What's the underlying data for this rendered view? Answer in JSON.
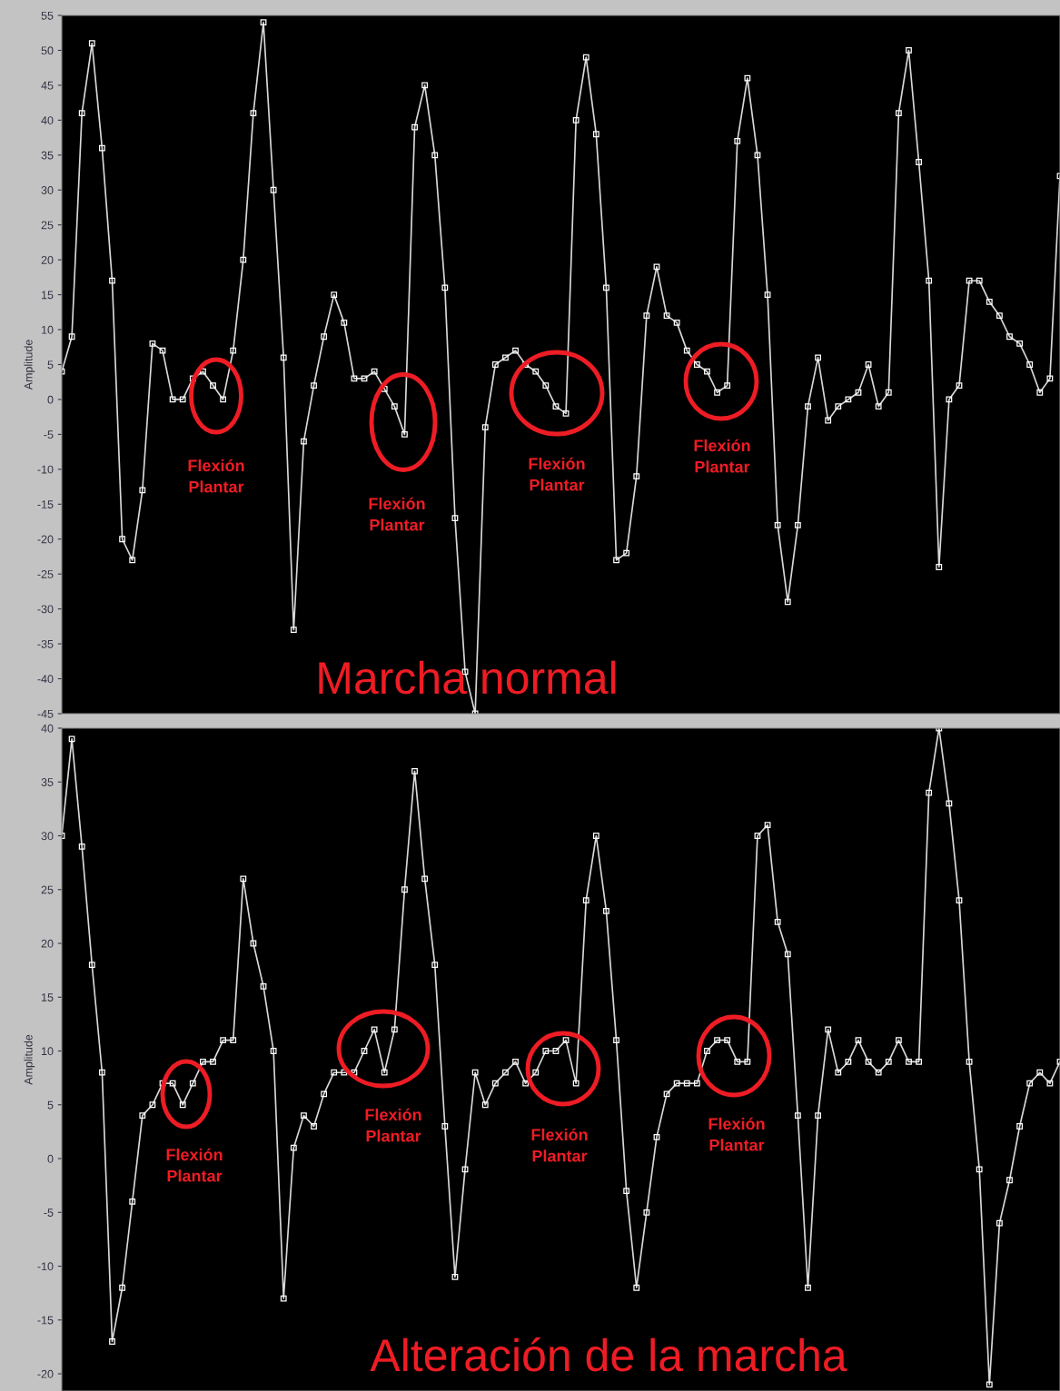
{
  "chart_data": [
    {
      "type": "line",
      "title": "Marcha normal",
      "ylabel": "Amplitude",
      "categories": [
        null,
        null,
        null,
        null,
        null,
        null,
        null,
        null,
        null,
        null,
        null,
        null,
        null,
        null,
        null,
        null,
        null,
        null,
        null,
        null,
        null,
        null,
        null,
        null,
        null,
        null,
        null,
        null,
        null,
        null,
        null,
        null,
        null,
        null,
        null,
        null,
        null,
        null,
        null,
        null,
        null,
        null,
        null,
        null,
        null,
        null,
        null,
        null,
        null,
        null,
        null,
        null,
        null,
        null,
        null,
        null,
        null,
        null,
        null,
        null,
        null,
        null,
        null,
        null,
        null,
        null,
        null,
        null,
        null,
        null,
        null,
        null,
        null,
        null,
        null,
        null,
        null,
        null,
        null,
        null,
        null,
        null,
        null,
        null,
        null,
        null,
        null,
        null,
        null,
        null,
        null,
        null,
        null,
        null,
        null,
        null,
        null,
        null,
        null,
        null
      ],
      "series": [
        {
          "color": "#d8d8d8",
          "values": [
            4,
            9,
            41,
            51,
            36,
            17,
            -20,
            -23,
            -13,
            8,
            7,
            0,
            0,
            3,
            4,
            2,
            0,
            7,
            20,
            41,
            54,
            30,
            6,
            -33,
            -6,
            2,
            9,
            15,
            11,
            3,
            3,
            4,
            1.5,
            -1,
            -5,
            39,
            45,
            35,
            16,
            -17,
            -39,
            -45,
            -4,
            5,
            6,
            7,
            5,
            4,
            2,
            -1,
            -2,
            40,
            49,
            38,
            16,
            -23,
            -22,
            -11,
            12,
            19,
            12,
            11,
            7,
            5,
            4,
            1,
            2,
            37,
            46,
            35,
            15,
            -18,
            -29,
            -18,
            -1,
            6,
            -3,
            -1,
            0,
            1,
            5,
            -1,
            1,
            41,
            50,
            34,
            17,
            -24,
            0,
            2,
            17,
            17,
            14,
            12,
            9,
            8,
            5,
            1,
            3,
            32
          ]
        }
      ],
      "ylim": [
        -45,
        55
      ],
      "yticks": [
        -45,
        -40,
        -35,
        -30,
        -25,
        -20,
        -15,
        -10,
        -5,
        0,
        5,
        10,
        15,
        20,
        25,
        30,
        35,
        40,
        45,
        50,
        55
      ],
      "annotations": [
        "Flexión\nPlantar",
        "Flexión\nPlantar",
        "Flexión\nPlantar",
        "Flexión\nPlantar"
      ],
      "marker": "square",
      "line_style": "solid",
      "grid": false,
      "tick_labels": "y"
    },
    {
      "type": "line",
      "title": "Alteración de la marcha",
      "ylabel": "Amplitude",
      "categories": [
        null,
        null,
        null,
        null,
        null,
        null,
        null,
        null,
        null,
        null,
        null,
        null,
        null,
        null,
        null,
        null,
        null,
        null,
        null,
        null,
        null,
        null,
        null,
        null,
        null,
        null,
        null,
        null,
        null,
        null,
        null,
        null,
        null,
        null,
        null,
        null,
        null,
        null,
        null,
        null,
        null,
        null,
        null,
        null,
        null,
        null,
        null,
        null,
        null,
        null,
        null,
        null,
        null,
        null,
        null,
        null,
        null,
        null,
        null,
        null,
        null,
        null,
        null,
        null,
        null,
        null,
        null,
        null,
        null,
        null,
        null,
        null,
        null,
        null,
        null,
        null,
        null,
        null,
        null,
        null,
        null,
        null,
        null,
        null,
        null,
        null,
        null,
        null,
        null,
        null,
        null,
        null,
        null,
        null,
        null,
        null,
        null,
        null,
        null,
        null
      ],
      "series": [
        {
          "color": "#d8d8d8",
          "values": [
            30,
            39,
            29,
            18,
            8,
            -17,
            -12,
            -4,
            4,
            5,
            7,
            7,
            5,
            7,
            9,
            9,
            11,
            11,
            26,
            20,
            16,
            10,
            -13,
            1,
            4,
            3,
            6,
            8,
            8,
            8,
            10,
            12,
            8,
            12,
            25,
            36,
            26,
            18,
            3,
            -11,
            -1,
            8,
            5,
            7,
            8,
            9,
            7,
            8,
            10,
            10,
            11,
            7,
            24,
            30,
            23,
            11,
            -3,
            -12,
            -5,
            2,
            6,
            7,
            7,
            7,
            10,
            11,
            11,
            9,
            9,
            30,
            31,
            22,
            19,
            4,
            -12,
            4,
            12,
            8,
            9,
            11,
            9,
            8,
            9,
            11,
            9,
            9,
            34,
            40,
            33,
            24,
            9,
            -1,
            -21,
            -6,
            -2,
            3,
            7,
            8,
            7,
            9
          ]
        }
      ],
      "ylim": [
        -21.6,
        40
      ],
      "yticks": [
        -20,
        -15,
        -10,
        -5,
        0,
        5,
        10,
        15,
        20,
        25,
        30,
        35,
        40
      ],
      "annotations": [
        "Flexión\nPlantar",
        "Flexión\nPlantar",
        "Flexión\nPlantar",
        "Flexión\nPlantar"
      ],
      "marker": "square",
      "line_style": "solid",
      "grid": false,
      "tick_labels": "y"
    }
  ]
}
